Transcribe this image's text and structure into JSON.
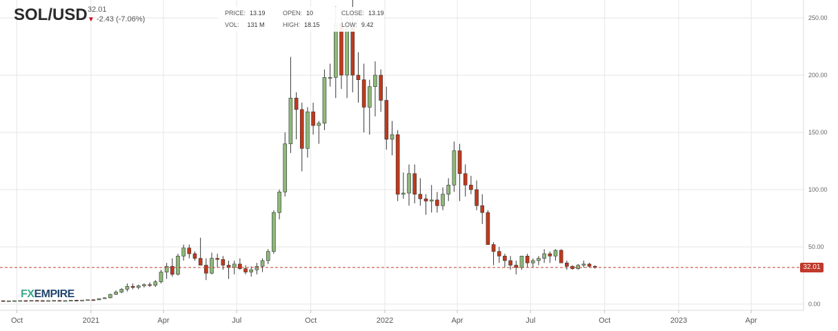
{
  "header": {
    "symbol": "SOL/USD",
    "last_value": "32.01",
    "change": "-2.43 (-7.06%)",
    "change_icon": "arrow-down-icon",
    "change_color": "#d0021b"
  },
  "ohlc": {
    "price_label": "PRICE:",
    "price": "13.19",
    "open_label": "OPEN:",
    "open": "10",
    "close_label": "CLOSE:",
    "close": "13.19",
    "vol_label": "VOL:",
    "vol": "131 M",
    "high_label": "HIGH:",
    "high": "18.15",
    "low_label": "LOW:",
    "low": "9.42"
  },
  "last_badge": "32.01",
  "logo": {
    "part1": "FX",
    "part2": "EMPIRE"
  },
  "colors": {
    "up": "#8db87a",
    "down": "#c0391b",
    "price_line": "#c0392b"
  },
  "chart_data": {
    "type": "candlestick",
    "interval": "weekly",
    "ylim": [
      0,
      260
    ],
    "y_ticks": [
      0,
      50,
      100,
      150,
      200,
      250
    ],
    "y_tick_labels": [
      "0.00",
      "50.00",
      "100.00",
      "150.00",
      "200.00",
      "250.00"
    ],
    "x_tick_labels": [
      "Oct",
      "2021",
      "Apr",
      "Jul",
      "Oct",
      "2022",
      "Apr",
      "Jul",
      "Oct",
      "2023",
      "Apr"
    ],
    "x_tick_dates": [
      "2020-10-01",
      "2021-01-01",
      "2021-04-01",
      "2021-07-01",
      "2021-10-01",
      "2022-01-01",
      "2022-04-01",
      "2022-07-01",
      "2022-10-01",
      "2023-01-01",
      "2023-04-01"
    ],
    "x_range": [
      "2020-09-10",
      "2023-06-05"
    ],
    "last_price": 32.01,
    "grid": true,
    "start_date": "2020-09-07",
    "candles": [
      [
        3,
        3.5,
        2.5,
        3
      ],
      [
        3,
        3.2,
        2.4,
        2.8
      ],
      [
        2.8,
        3.1,
        2.5,
        2.9
      ],
      [
        2.9,
        3.2,
        2.6,
        3
      ],
      [
        3,
        3.3,
        2.7,
        3.1
      ],
      [
        3.1,
        3.3,
        2.8,
        3
      ],
      [
        3,
        3.4,
        2.8,
        3.2
      ],
      [
        3.2,
        3.5,
        2.9,
        3.1
      ],
      [
        3.1,
        3.4,
        2.8,
        3
      ],
      [
        3,
        3.3,
        2.7,
        3.1
      ],
      [
        3.1,
        3.4,
        2.8,
        3.2
      ],
      [
        3.2,
        3.5,
        2.9,
        3
      ],
      [
        3,
        3.3,
        2.8,
        3.1
      ],
      [
        3.1,
        3.6,
        2.9,
        3.4
      ],
      [
        3.4,
        3.8,
        3,
        3.2
      ],
      [
        3.2,
        3.6,
        3,
        3.5
      ],
      [
        3.5,
        4,
        3.2,
        3.8
      ],
      [
        3.8,
        4.2,
        3.4,
        3.7
      ],
      [
        3.7,
        5,
        3.5,
        4.8
      ],
      [
        4.8,
        6,
        4.5,
        5.5
      ],
      [
        5.5,
        9,
        5,
        8.5
      ],
      [
        8.5,
        12,
        8,
        10.5
      ],
      [
        10.5,
        14,
        9.5,
        13
      ],
      [
        13,
        18,
        11,
        15.5
      ],
      [
        15.5,
        18,
        13,
        14.5
      ],
      [
        14.5,
        17,
        13,
        16
      ],
      [
        16,
        18,
        14.5,
        17
      ],
      [
        17,
        19,
        15,
        16.5
      ],
      [
        16.5,
        21,
        15,
        19.5
      ],
      [
        19.5,
        30,
        18,
        28
      ],
      [
        28,
        36,
        22,
        33
      ],
      [
        33,
        40,
        24,
        26
      ],
      [
        26,
        44,
        25,
        42
      ],
      [
        42,
        52,
        38,
        49
      ],
      [
        49,
        52,
        40,
        44
      ],
      [
        44,
        46,
        38,
        40
      ],
      [
        40,
        58,
        34,
        34
      ],
      [
        34,
        40,
        21,
        27
      ],
      [
        27,
        45,
        26,
        40
      ],
      [
        40,
        44,
        32,
        39
      ],
      [
        39,
        42,
        30,
        34
      ],
      [
        34,
        38,
        22,
        32
      ],
      [
        32,
        38,
        26,
        35
      ],
      [
        35,
        40,
        30,
        31
      ],
      [
        31,
        34,
        26,
        28
      ],
      [
        28,
        33,
        24,
        30
      ],
      [
        30,
        36,
        26,
        33
      ],
      [
        33,
        40,
        28,
        38
      ],
      [
        38,
        48,
        35,
        46
      ],
      [
        46,
        82,
        44,
        80
      ],
      [
        80,
        100,
        74,
        98
      ],
      [
        98,
        150,
        94,
        140
      ],
      [
        140,
        216,
        132,
        180
      ],
      [
        180,
        185,
        144,
        170
      ],
      [
        170,
        176,
        116,
        136
      ],
      [
        136,
        172,
        128,
        168
      ],
      [
        168,
        176,
        148,
        156
      ],
      [
        156,
        160,
        140,
        158
      ],
      [
        158,
        205,
        152,
        198
      ],
      [
        198,
        210,
        190,
        198
      ],
      [
        198,
        260,
        180,
        245
      ],
      [
        245,
        258,
        188,
        200
      ],
      [
        200,
        258,
        180,
        242
      ],
      [
        242,
        272,
        185,
        200
      ],
      [
        200,
        220,
        176,
        196
      ],
      [
        196,
        210,
        150,
        172
      ],
      [
        172,
        196,
        148,
        190
      ],
      [
        190,
        212,
        164,
        200
      ],
      [
        200,
        205,
        168,
        178
      ],
      [
        178,
        190,
        135,
        144
      ],
      [
        144,
        160,
        130,
        148
      ],
      [
        148,
        152,
        90,
        96
      ],
      [
        96,
        115,
        92,
        97
      ],
      [
        97,
        122,
        86,
        114
      ],
      [
        114,
        122,
        88,
        96
      ],
      [
        96,
        110,
        86,
        92
      ],
      [
        92,
        96,
        78,
        90
      ],
      [
        90,
        104,
        80,
        91
      ],
      [
        91,
        98,
        80,
        86
      ],
      [
        86,
        102,
        82,
        96
      ],
      [
        96,
        110,
        90,
        104
      ],
      [
        104,
        142,
        98,
        134
      ],
      [
        134,
        140,
        90,
        114
      ],
      [
        114,
        122,
        94,
        104
      ],
      [
        104,
        112,
        96,
        100
      ],
      [
        100,
        108,
        82,
        86
      ],
      [
        86,
        96,
        70,
        80
      ],
      [
        80,
        82,
        54,
        52
      ],
      [
        52,
        54,
        34,
        46
      ],
      [
        46,
        50,
        36,
        42
      ],
      [
        42,
        44,
        32,
        38
      ],
      [
        38,
        42,
        30,
        34
      ],
      [
        34,
        38,
        26,
        32
      ],
      [
        32,
        42,
        30,
        42
      ],
      [
        42,
        44,
        32,
        36
      ],
      [
        36,
        40,
        32,
        38
      ],
      [
        38,
        42,
        34,
        40
      ],
      [
        40,
        48,
        36,
        44
      ],
      [
        44,
        46,
        36,
        42
      ],
      [
        42,
        48,
        38,
        47
      ],
      [
        47,
        48,
        36,
        36
      ],
      [
        36,
        38,
        30,
        33
      ],
      [
        33,
        34,
        30,
        31
      ],
      [
        31,
        35,
        30,
        34
      ],
      [
        34,
        38,
        32,
        35
      ],
      [
        35,
        36,
        32,
        33
      ],
      [
        33,
        34,
        31,
        32.01
      ]
    ]
  }
}
